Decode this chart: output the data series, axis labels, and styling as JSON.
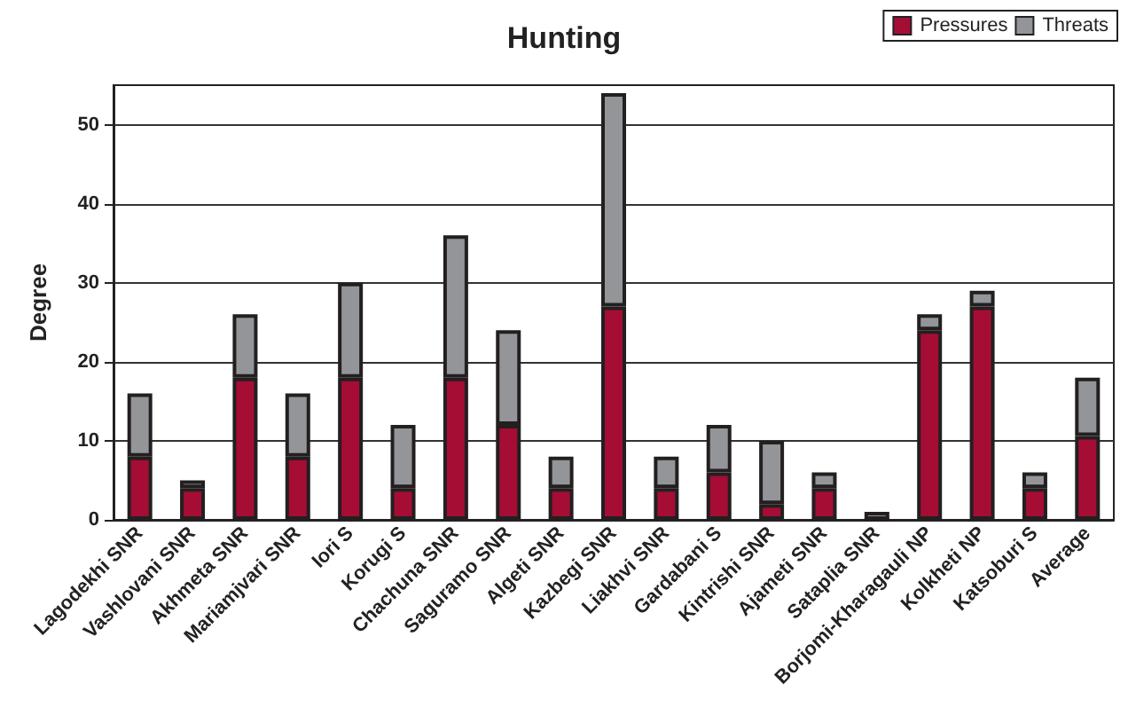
{
  "chart_data": {
    "type": "bar",
    "title": "Hunting",
    "ylabel": "Degree",
    "stacked": true,
    "categories": [
      "Lagodekhi SNR",
      "Vashlovani SNR",
      "Akhmeta SNR",
      "Mariamjvari SNR",
      "Iori S",
      "Korugi S",
      "Chachuna SNR",
      "Saguramo SNR",
      "Algeti SNR",
      "Kazbegi SNR",
      "Liakhvi SNR",
      "Gardabani S",
      "Kintrishi SNR",
      "Ajameti SNR",
      "Sataplia SNR",
      "Borjomi-Kharagauli NP",
      "Kolkheti NP",
      "Katsoburi S",
      "Average"
    ],
    "series": [
      {
        "name": "Pressures",
        "color": "#a50d35",
        "values": [
          8,
          4,
          18,
          8,
          18,
          4,
          18,
          12,
          4,
          27,
          4,
          6,
          2,
          4,
          0,
          24,
          27,
          4,
          10.6
        ]
      },
      {
        "name": "Threats",
        "color": "#939598",
        "values": [
          8,
          1,
          8,
          8,
          12,
          8,
          18,
          12,
          4,
          27,
          4,
          6,
          8,
          2,
          1,
          2,
          2,
          2,
          7.4
        ]
      }
    ],
    "ylim": [
      0,
      55
    ],
    "yticks": [
      0,
      10,
      20,
      30,
      40,
      50
    ],
    "grid": "y",
    "legend": "top right"
  }
}
